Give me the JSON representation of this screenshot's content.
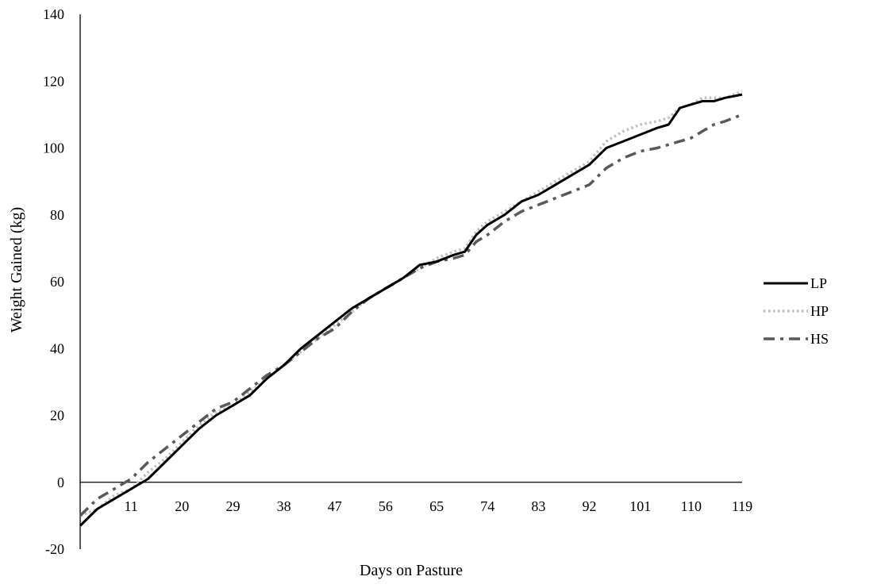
{
  "chart_data": {
    "type": "line",
    "title": "",
    "xlabel": "Days on Pasture",
    "ylabel": "Weight Gained (kg)",
    "ylim": [
      -20,
      140
    ],
    "y_ticks": [
      -20,
      0,
      20,
      40,
      60,
      80,
      100,
      120,
      140
    ],
    "xlim": [
      2,
      119
    ],
    "x_ticks": [
      11,
      20,
      29,
      38,
      47,
      56,
      65,
      74,
      83,
      92,
      101,
      110,
      119
    ],
    "grid": false,
    "legend_position": "right",
    "x": [
      2,
      5,
      8,
      11,
      14,
      17,
      20,
      23,
      26,
      29,
      32,
      35,
      38,
      41,
      44,
      47,
      50,
      53,
      56,
      59,
      62,
      65,
      68,
      70,
      72,
      74,
      77,
      80,
      83,
      86,
      89,
      92,
      95,
      98,
      101,
      104,
      106,
      108,
      110,
      112,
      114,
      116,
      119
    ],
    "series": [
      {
        "name": "LP",
        "color": "#000000",
        "dash": "solid",
        "values": [
          -13,
          -8,
          -5,
          -2,
          1,
          6,
          11,
          16,
          20,
          23,
          26,
          31,
          35,
          40,
          44,
          48,
          52,
          55,
          58,
          61,
          65,
          66,
          68,
          69,
          74,
          77,
          80,
          84,
          86,
          89,
          92,
          95,
          100,
          102,
          104,
          106,
          107,
          112,
          113,
          114,
          114,
          115,
          116
        ]
      },
      {
        "name": "HP",
        "color": "#bfbfbf",
        "dash": "dotted",
        "values": [
          -10,
          -8,
          -4,
          -2,
          3,
          7,
          12,
          17,
          21,
          23,
          27,
          31,
          35,
          39,
          43,
          47,
          51,
          55,
          58,
          61,
          64,
          67,
          69,
          70,
          75,
          78,
          81,
          84,
          87,
          90,
          93,
          96,
          102,
          105,
          107,
          108,
          109,
          112,
          113,
          115,
          115,
          115,
          117
        ]
      },
      {
        "name": "HS",
        "color": "#595959",
        "dash": "dash-dot",
        "values": [
          -10,
          -5,
          -2,
          1,
          6,
          10,
          14,
          18,
          22,
          24,
          28,
          32,
          35,
          39,
          43,
          46,
          51,
          55,
          58,
          61,
          64,
          66,
          67,
          68,
          72,
          74,
          78,
          81,
          83,
          85,
          87,
          89,
          94,
          97,
          99,
          100,
          101,
          102,
          103,
          105,
          107,
          108,
          110
        ]
      }
    ]
  }
}
